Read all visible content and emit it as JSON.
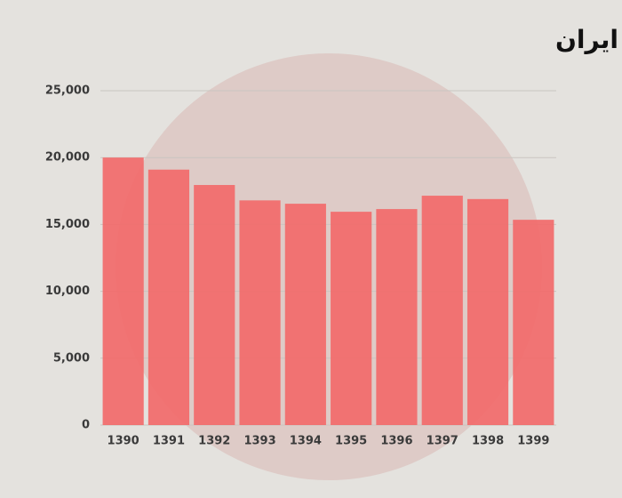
{
  "chart_data": {
    "type": "bar",
    "title": "کشته شدگان سوانح رانندگی در ایران",
    "categories": [
      "1390",
      "1391",
      "1392",
      "1393",
      "1394",
      "1395",
      "1396",
      "1397",
      "1398",
      "1399"
    ],
    "values": [
      20000,
      19100,
      17950,
      16800,
      16550,
      15950,
      16150,
      17150,
      16900,
      15350
    ],
    "color": "#f26a6a",
    "ylim": [
      0,
      25000
    ],
    "yticks": [
      0,
      {
        "value": 5000,
        "label": "5,000"
      },
      {
        "value": 10000,
        "label": "10,000"
      },
      {
        "value": 15000,
        "label": "15,000"
      },
      {
        "value": 20000,
        "label": "20,000"
      },
      {
        "value": 25000,
        "label": "25,000"
      }
    ],
    "grid": true
  }
}
